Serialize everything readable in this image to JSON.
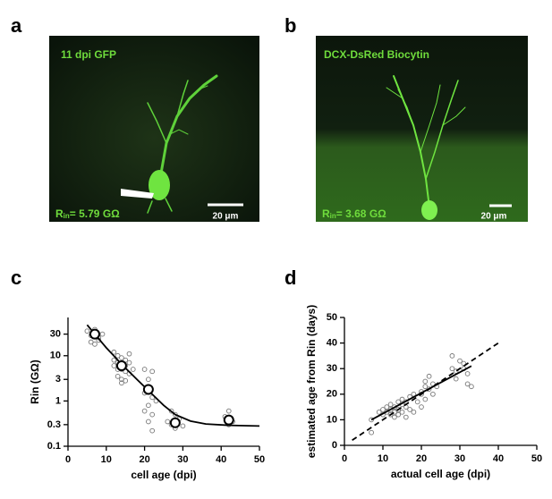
{
  "figure": {
    "panel_labels": [
      "a",
      "b",
      "c",
      "d"
    ],
    "images": [
      {
        "caption": "11 dpi  GFP",
        "rin": {
          "symbol": "R",
          "subscript": "in",
          "value": "= 5.79 GΩ"
        },
        "scale_bar": "20 μm"
      },
      {
        "caption": "DCX-DsRed Biocytin",
        "rin": {
          "symbol": "R",
          "subscript": "in",
          "value": "= 3.68 GΩ"
        },
        "scale_bar": "20 μm"
      }
    ]
  },
  "chart_data": [
    {
      "type": "scatter",
      "xlabel": "cell age (dpi)",
      "ylabel": "Rin (GΩ)",
      "log_y": true,
      "xlim": [
        0,
        50
      ],
      "xticks": [
        0,
        10,
        20,
        30,
        40,
        50
      ],
      "ylim": [
        0.1,
        70
      ],
      "yticks": [
        0.1,
        0.3,
        1,
        3,
        10,
        30
      ],
      "series": [
        {
          "style": "open-circle",
          "color": "#777777",
          "x": [
            5,
            6,
            7,
            8,
            6,
            7,
            8,
            9,
            7,
            12,
            13,
            14,
            15,
            16,
            12,
            13,
            14,
            15,
            16,
            13,
            14,
            15,
            17,
            12,
            16,
            14,
            13,
            15,
            20,
            22,
            21,
            20,
            22,
            21,
            20,
            22,
            21,
            23,
            22,
            27,
            28,
            29,
            27,
            28,
            30,
            26,
            41,
            42,
            43,
            42
          ],
          "values": [
            35,
            28,
            38,
            25,
            20,
            18,
            22,
            30,
            33,
            12,
            10,
            9,
            8,
            7,
            6,
            5,
            5,
            4.5,
            4,
            3.5,
            3,
            2.8,
            5,
            8,
            11,
            2.5,
            7,
            6,
            5,
            4.5,
            3,
            1.5,
            1.2,
            0.8,
            0.6,
            0.5,
            0.35,
            1,
            0.22,
            0.6,
            0.5,
            0.4,
            0.3,
            0.25,
            0.28,
            0.35,
            0.45,
            0.6,
            0.35,
            0.3
          ]
        },
        {
          "style": "line",
          "color": "#000000",
          "x": [
            5,
            7,
            10,
            14,
            18,
            21,
            25,
            28,
            32,
            36,
            42,
            50
          ],
          "values": [
            48,
            30,
            15,
            6.5,
            3,
            1.7,
            0.8,
            0.5,
            0.36,
            0.31,
            0.29,
            0.28
          ]
        },
        {
          "style": "mean",
          "color": "#000000",
          "x": [
            7,
            14,
            21,
            28,
            42
          ],
          "values": [
            30,
            6,
            1.8,
            0.33,
            0.38
          ]
        }
      ]
    },
    {
      "type": "scatter",
      "xlabel": "actual cell age (dpi)",
      "ylabel": "estimated age from Rin (days)",
      "log_y": false,
      "xlim": [
        0,
        50
      ],
      "xticks": [
        0,
        10,
        20,
        30,
        40,
        50
      ],
      "ylim": [
        0,
        50
      ],
      "yticks": [
        0,
        10,
        20,
        30,
        40,
        50
      ],
      "series": [
        {
          "style": "open-circle",
          "color": "#777777",
          "x": [
            7,
            7,
            9,
            10,
            10,
            11,
            11,
            12,
            12,
            12,
            13,
            13,
            13,
            14,
            14,
            14,
            15,
            15,
            15,
            16,
            16,
            16,
            17,
            17,
            18,
            18,
            20,
            20,
            21,
            21,
            21,
            22,
            22,
            23,
            23,
            24,
            28,
            28,
            29,
            29,
            30,
            31,
            32,
            32,
            33,
            31,
            20,
            19
          ],
          "values": [
            5,
            10,
            13,
            12,
            14,
            13,
            15,
            14,
            12,
            16,
            15,
            13,
            11,
            17,
            14,
            12,
            16,
            13,
            18,
            15,
            17,
            11,
            19,
            14,
            13,
            20,
            21,
            15,
            18,
            23,
            25,
            27,
            22,
            20,
            24,
            23,
            30,
            35,
            29,
            26,
            33,
            32,
            28,
            24,
            23,
            30,
            20,
            17
          ]
        },
        {
          "style": "dashed",
          "color": "#000000",
          "x": [
            2,
            40
          ],
          "values": [
            2,
            40
          ]
        },
        {
          "style": "line",
          "color": "#000000",
          "x": [
            7,
            33
          ],
          "values": [
            10,
            31
          ]
        }
      ]
    }
  ]
}
